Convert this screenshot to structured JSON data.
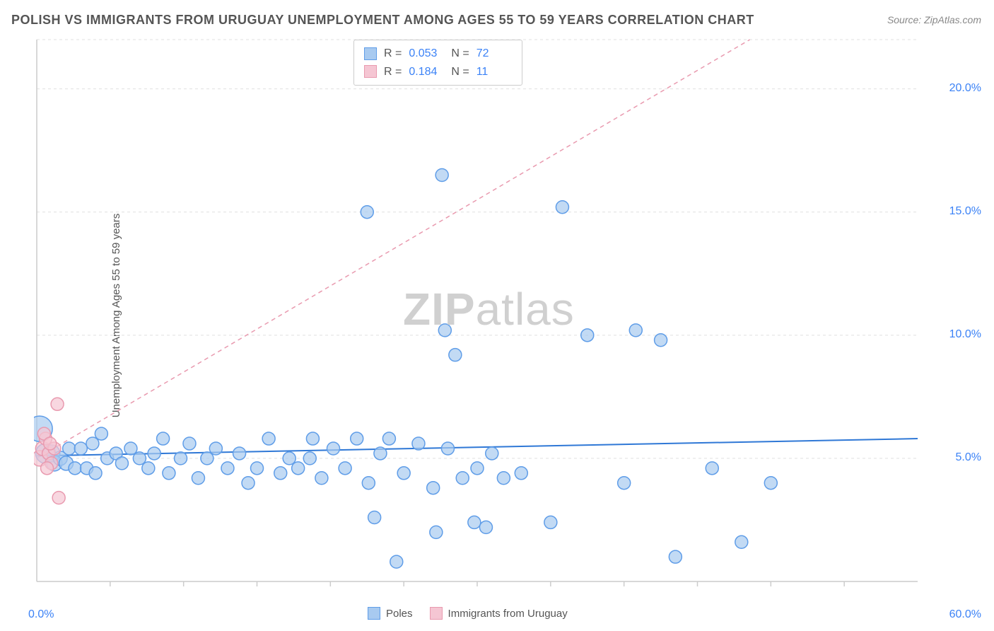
{
  "title": "POLISH VS IMMIGRANTS FROM URUGUAY UNEMPLOYMENT AMONG AGES 55 TO 59 YEARS CORRELATION CHART",
  "source": "Source: ZipAtlas.com",
  "y_axis_label": "Unemployment Among Ages 55 to 59 years",
  "watermark_a": "ZIP",
  "watermark_b": "atlas",
  "chart": {
    "type": "scatter",
    "xlim": [
      0,
      60
    ],
    "ylim": [
      0,
      22
    ],
    "x_ticks_minor": [
      5,
      10,
      15,
      20,
      25,
      30,
      35,
      40,
      45,
      50,
      55
    ],
    "x_tick_labels": {
      "left": "0.0%",
      "right": "60.0%"
    },
    "y_grid": [
      5,
      10,
      15,
      20,
      22
    ],
    "y_tick_labels": [
      {
        "v": 5,
        "label": "5.0%"
      },
      {
        "v": 10,
        "label": "10.0%"
      },
      {
        "v": 15,
        "label": "15.0%"
      },
      {
        "v": 20,
        "label": "20.0%"
      }
    ],
    "background_color": "#ffffff",
    "grid_color": "#e0e0e0",
    "grid_dash": "4 4",
    "axis_color": "#cccccc",
    "series": [
      {
        "name": "Poles",
        "color_fill": "#a8caf0",
        "color_stroke": "#5f9de8",
        "marker_r_base": 9,
        "regression": {
          "y0": 5.1,
          "y60": 5.8,
          "color": "#2f78d6",
          "width": 2,
          "dash": "none"
        },
        "points": [
          {
            "x": 0.2,
            "y": 6.2,
            "r": 18
          },
          {
            "x": 0.6,
            "y": 5.2,
            "r": 14
          },
          {
            "x": 1.0,
            "y": 5.2,
            "r": 12
          },
          {
            "x": 1.2,
            "y": 4.8,
            "r": 11
          },
          {
            "x": 1.6,
            "y": 5.0,
            "r": 10
          },
          {
            "x": 2.0,
            "y": 4.8,
            "r": 10
          },
          {
            "x": 2.2,
            "y": 5.4,
            "r": 9
          },
          {
            "x": 2.6,
            "y": 4.6,
            "r": 9
          },
          {
            "x": 3.0,
            "y": 5.4,
            "r": 9
          },
          {
            "x": 3.4,
            "y": 4.6,
            "r": 9
          },
          {
            "x": 3.8,
            "y": 5.6,
            "r": 9
          },
          {
            "x": 4.0,
            "y": 4.4,
            "r": 9
          },
          {
            "x": 4.4,
            "y": 6.0,
            "r": 9
          },
          {
            "x": 4.8,
            "y": 5.0,
            "r": 9
          },
          {
            "x": 5.4,
            "y": 5.2,
            "r": 9
          },
          {
            "x": 5.8,
            "y": 4.8,
            "r": 9
          },
          {
            "x": 6.4,
            "y": 5.4,
            "r": 9
          },
          {
            "x": 7.0,
            "y": 5.0,
            "r": 9
          },
          {
            "x": 7.6,
            "y": 4.6,
            "r": 9
          },
          {
            "x": 8.0,
            "y": 5.2,
            "r": 9
          },
          {
            "x": 8.6,
            "y": 5.8,
            "r": 9
          },
          {
            "x": 9.0,
            "y": 4.4,
            "r": 9
          },
          {
            "x": 9.8,
            "y": 5.0,
            "r": 9
          },
          {
            "x": 10.4,
            "y": 5.6,
            "r": 9
          },
          {
            "x": 11.0,
            "y": 4.2,
            "r": 9
          },
          {
            "x": 11.6,
            "y": 5.0,
            "r": 9
          },
          {
            "x": 12.2,
            "y": 5.4,
            "r": 9
          },
          {
            "x": 13.0,
            "y": 4.6,
            "r": 9
          },
          {
            "x": 13.8,
            "y": 5.2,
            "r": 9
          },
          {
            "x": 14.4,
            "y": 4.0,
            "r": 9
          },
          {
            "x": 15.0,
            "y": 4.6,
            "r": 9
          },
          {
            "x": 15.8,
            "y": 5.8,
            "r": 9
          },
          {
            "x": 16.6,
            "y": 4.4,
            "r": 9
          },
          {
            "x": 17.2,
            "y": 5.0,
            "r": 9
          },
          {
            "x": 17.8,
            "y": 4.6,
            "r": 9
          },
          {
            "x": 18.6,
            "y": 5.0,
            "r": 9
          },
          {
            "x": 18.8,
            "y": 5.8,
            "r": 9
          },
          {
            "x": 19.4,
            "y": 4.2,
            "r": 9
          },
          {
            "x": 20.2,
            "y": 5.4,
            "r": 9
          },
          {
            "x": 21.0,
            "y": 4.6,
            "r": 9
          },
          {
            "x": 21.8,
            "y": 5.8,
            "r": 9
          },
          {
            "x": 22.6,
            "y": 4.0,
            "r": 9
          },
          {
            "x": 23.4,
            "y": 5.2,
            "r": 9
          },
          {
            "x": 23.0,
            "y": 2.6,
            "r": 9
          },
          {
            "x": 24.0,
            "y": 5.8,
            "r": 9
          },
          {
            "x": 24.5,
            "y": 0.8,
            "r": 9
          },
          {
            "x": 25.0,
            "y": 4.4,
            "r": 9
          },
          {
            "x": 26.0,
            "y": 5.6,
            "r": 9
          },
          {
            "x": 27.0,
            "y": 3.8,
            "r": 9
          },
          {
            "x": 27.2,
            "y": 2.0,
            "r": 9
          },
          {
            "x": 27.6,
            "y": 16.5,
            "r": 9
          },
          {
            "x": 22.5,
            "y": 15.0,
            "r": 9
          },
          {
            "x": 27.8,
            "y": 10.2,
            "r": 9
          },
          {
            "x": 28.5,
            "y": 9.2,
            "r": 9
          },
          {
            "x": 28.0,
            "y": 5.4,
            "r": 9
          },
          {
            "x": 29.0,
            "y": 4.2,
            "r": 9
          },
          {
            "x": 29.8,
            "y": 2.4,
            "r": 9
          },
          {
            "x": 30.0,
            "y": 4.6,
            "r": 9
          },
          {
            "x": 30.6,
            "y": 2.2,
            "r": 9
          },
          {
            "x": 31.0,
            "y": 5.2,
            "r": 9
          },
          {
            "x": 31.8,
            "y": 4.2,
            "r": 9
          },
          {
            "x": 33.0,
            "y": 4.4,
            "r": 9
          },
          {
            "x": 35.0,
            "y": 2.4,
            "r": 9
          },
          {
            "x": 35.8,
            "y": 15.2,
            "r": 9
          },
          {
            "x": 37.5,
            "y": 10.0,
            "r": 9
          },
          {
            "x": 40.0,
            "y": 4.0,
            "r": 9
          },
          {
            "x": 40.8,
            "y": 10.2,
            "r": 9
          },
          {
            "x": 42.5,
            "y": 9.8,
            "r": 9
          },
          {
            "x": 43.5,
            "y": 1.0,
            "r": 9
          },
          {
            "x": 46.0,
            "y": 4.6,
            "r": 9
          },
          {
            "x": 48.0,
            "y": 1.6,
            "r": 9
          },
          {
            "x": 50.0,
            "y": 4.0,
            "r": 9
          }
        ]
      },
      {
        "name": "Immigrants from Uruguay",
        "color_fill": "#f5c6d3",
        "color_stroke": "#e99aaf",
        "marker_r_base": 9,
        "regression": {
          "y0": 5.0,
          "y60": 26.0,
          "color": "#e99aaf",
          "width": 1.5,
          "dash": "6 5"
        },
        "points": [
          {
            "x": 0.2,
            "y": 5.0,
            "r": 11
          },
          {
            "x": 0.4,
            "y": 5.4,
            "r": 10
          },
          {
            "x": 0.6,
            "y": 5.8,
            "r": 9
          },
          {
            "x": 0.8,
            "y": 5.2,
            "r": 9
          },
          {
            "x": 1.0,
            "y": 4.8,
            "r": 9
          },
          {
            "x": 1.2,
            "y": 5.4,
            "r": 9
          },
          {
            "x": 1.4,
            "y": 7.2,
            "r": 9
          },
          {
            "x": 0.5,
            "y": 6.0,
            "r": 9
          },
          {
            "x": 0.7,
            "y": 4.6,
            "r": 9
          },
          {
            "x": 1.5,
            "y": 3.4,
            "r": 9
          },
          {
            "x": 0.9,
            "y": 5.6,
            "r": 9
          }
        ]
      }
    ]
  },
  "top_legend": {
    "rows": [
      {
        "swatch_fill": "#a8caf0",
        "swatch_stroke": "#5f9de8",
        "r_label": "R =",
        "r_val": "0.053",
        "n_label": "N =",
        "n_val": "72"
      },
      {
        "swatch_fill": "#f5c6d3",
        "swatch_stroke": "#e99aaf",
        "r_label": "R =",
        "r_val": "0.184",
        "n_label": "N =",
        "n_val": "11"
      }
    ]
  },
  "bottom_legend": {
    "items": [
      {
        "fill": "#a8caf0",
        "stroke": "#5f9de8",
        "label": "Poles"
      },
      {
        "fill": "#f5c6d3",
        "stroke": "#e99aaf",
        "label": "Immigrants from Uruguay"
      }
    ]
  },
  "colors": {
    "title": "#555555",
    "tick": "#3b82f6"
  }
}
